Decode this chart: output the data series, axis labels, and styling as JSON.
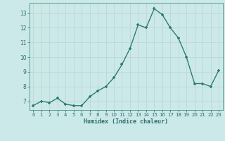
{
  "x": [
    0,
    1,
    2,
    3,
    4,
    5,
    6,
    7,
    8,
    9,
    10,
    11,
    12,
    13,
    14,
    15,
    16,
    17,
    18,
    19,
    20,
    21,
    22,
    23
  ],
  "y": [
    6.7,
    7.0,
    6.9,
    7.2,
    6.8,
    6.7,
    6.7,
    7.3,
    7.7,
    8.0,
    8.6,
    9.5,
    10.6,
    12.2,
    12.0,
    13.3,
    12.9,
    12.0,
    11.3,
    10.0,
    8.2,
    8.2,
    8.0,
    9.1
  ],
  "xlabel": "Humidex (Indice chaleur)",
  "ylim": [
    6.4,
    13.7
  ],
  "xlim": [
    -0.5,
    23.5
  ],
  "yticks": [
    7,
    8,
    9,
    10,
    11,
    12,
    13
  ],
  "xticks": [
    0,
    1,
    2,
    3,
    4,
    5,
    6,
    7,
    8,
    9,
    10,
    11,
    12,
    13,
    14,
    15,
    16,
    17,
    18,
    19,
    20,
    21,
    22,
    23
  ],
  "line_color": "#2d7d6e",
  "marker_color": "#2d7d6e",
  "bg_color": "#cce9e9",
  "grid_color": "#c0d8d8",
  "plot_area_bg": "#cce9e9"
}
